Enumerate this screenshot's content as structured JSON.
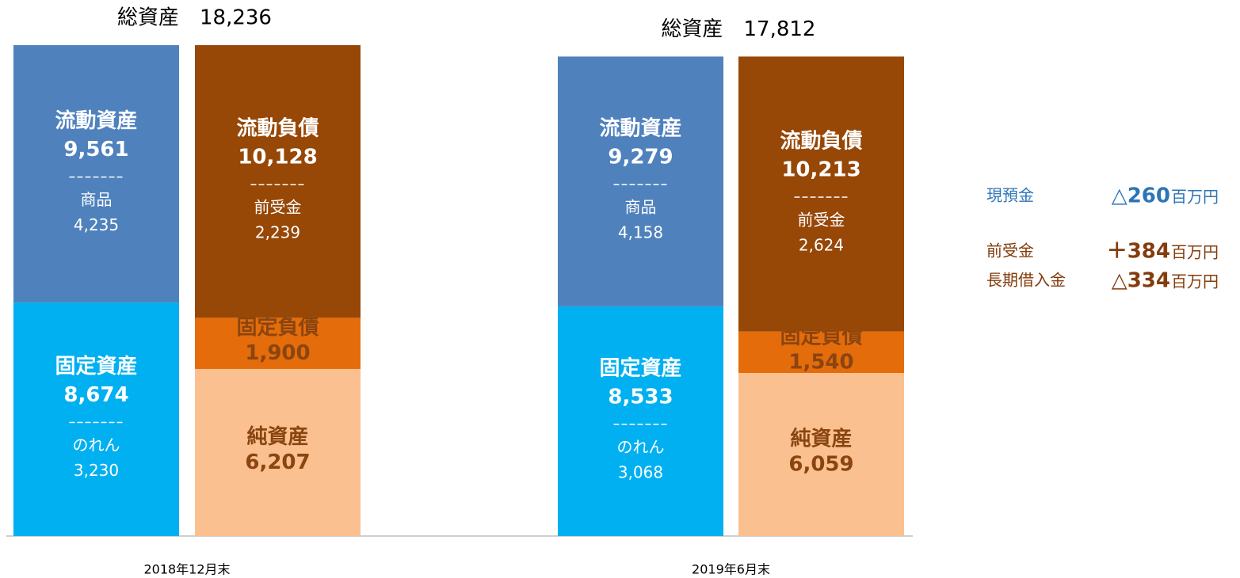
{
  "chart_data": {
    "type": "bar",
    "periods": [
      {
        "label": "2018年12月末",
        "total_name": "総資産",
        "total": 18236,
        "total_label": "18,236",
        "assets": [
          {
            "name": "流動資産",
            "value": 9561,
            "value_label": "9,561",
            "sub_name": "商品",
            "sub_value": 4235,
            "sub_value_label": "4,235",
            "color": "#4f81bd",
            "text_color": "#ffffff"
          },
          {
            "name": "固定資産",
            "value": 8674,
            "value_label": "8,674",
            "sub_name": "のれん",
            "sub_value": 3230,
            "sub_value_label": "3,230",
            "color": "#00b0f0",
            "text_color": "#ffffff"
          }
        ],
        "liabilities": [
          {
            "name": "流動負債",
            "value": 10128,
            "value_label": "10,128",
            "sub_name": "前受金",
            "sub_value": 2239,
            "sub_value_label": "2,239",
            "color": "#974706",
            "text_color": "#ffffff"
          },
          {
            "name": "固定負債",
            "value": 1900,
            "value_label": "1,900",
            "color": "#e46c0a",
            "text_color": "#8a4510"
          },
          {
            "name": "純資産",
            "value": 6207,
            "value_label": "6,207",
            "color": "#fac090",
            "text_color": "#8a4510"
          }
        ]
      },
      {
        "label": "2019年6月末",
        "total_name": "総資産",
        "total": 17812,
        "total_label": "17,812",
        "assets": [
          {
            "name": "流動資産",
            "value": 9279,
            "value_label": "9,279",
            "sub_name": "商品",
            "sub_value": 4158,
            "sub_value_label": "4,158",
            "color": "#4f81bd",
            "text_color": "#ffffff"
          },
          {
            "name": "固定資産",
            "value": 8533,
            "value_label": "8,533",
            "sub_name": "のれん",
            "sub_value": 3068,
            "sub_value_label": "3,068",
            "color": "#00b0f0",
            "text_color": "#ffffff"
          }
        ],
        "liabilities": [
          {
            "name": "流動負債",
            "value": 10213,
            "value_label": "10,213",
            "sub_name": "前受金",
            "sub_value": 2624,
            "sub_value_label": "2,624",
            "color": "#974706",
            "text_color": "#ffffff"
          },
          {
            "name": "固定負債",
            "value": 1540,
            "value_label": "1,540",
            "color": "#e46c0a",
            "text_color": "#8a4510"
          },
          {
            "name": "純資産",
            "value": 6059,
            "value_label": "6,059",
            "color": "#fac090",
            "text_color": "#8a4510"
          }
        ]
      }
    ],
    "notes": [
      {
        "label": "現預金",
        "value": -260,
        "value_label": "△260",
        "unit": "百万円",
        "color": "#2e75b6"
      },
      {
        "label": "前受金",
        "value": 384,
        "value_label": "＋384",
        "unit": "百万円",
        "color": "#843c0c"
      },
      {
        "label": "長期借入金",
        "value": -334,
        "value_label": "△334",
        "unit": "百万円",
        "color": "#843c0c"
      }
    ]
  }
}
